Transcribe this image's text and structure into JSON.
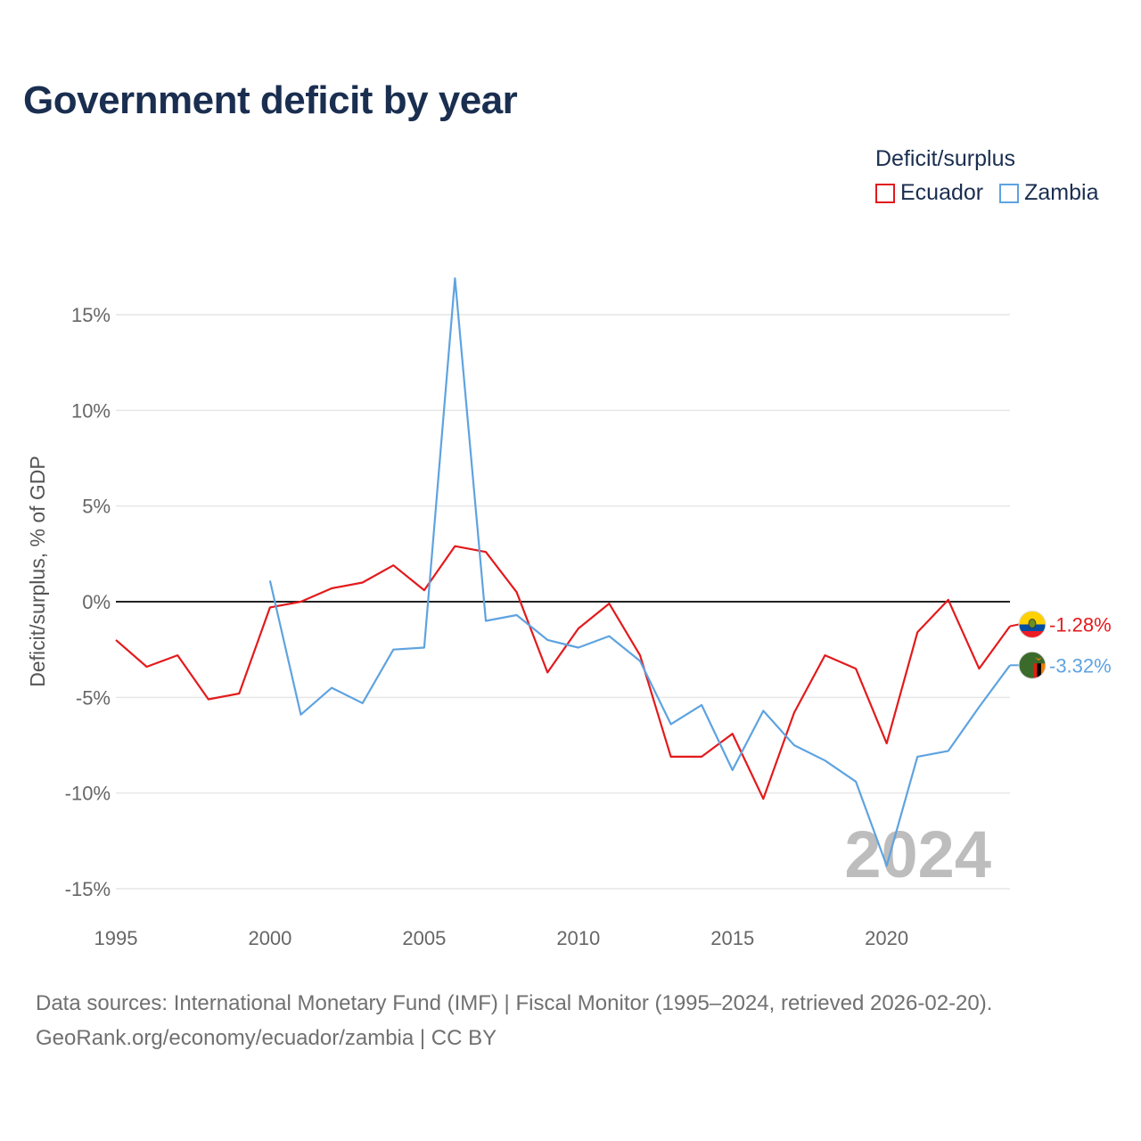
{
  "title": "Government deficit by year",
  "legend": {
    "title": "Deficit/surplus",
    "items": [
      {
        "label": "Ecuador",
        "color": "#e31a1c"
      },
      {
        "label": "Zambia",
        "color": "#5ea3e0"
      }
    ]
  },
  "chart_data": {
    "type": "line",
    "title": "Government deficit by year",
    "xlabel": "",
    "ylabel": "Deficit/surplus, % of GDP",
    "xlim": [
      1995,
      2024
    ],
    "ylim": [
      -15,
      17
    ],
    "x_ticks": [
      1995,
      2000,
      2005,
      2010,
      2015,
      2020
    ],
    "x_tick_labels": [
      "1995",
      "2000",
      "2005",
      "2010",
      "2015",
      "2020"
    ],
    "y_ticks": [
      15,
      10,
      5,
      0,
      -5,
      -10,
      -15
    ],
    "y_tick_labels": [
      "15%",
      "10%",
      "5%",
      "0%",
      "-5%",
      "-10%",
      "-15%"
    ],
    "grid": true,
    "watermark": "2024",
    "series": [
      {
        "name": "Ecuador",
        "color": "#e31a1c",
        "end_label": "-1.28%",
        "flag": "ecuador-flag",
        "x": [
          1995,
          1996,
          1997,
          1998,
          1999,
          2000,
          2001,
          2002,
          2003,
          2004,
          2005,
          2006,
          2007,
          2008,
          2009,
          2010,
          2011,
          2012,
          2013,
          2014,
          2015,
          2016,
          2017,
          2018,
          2019,
          2020,
          2021,
          2022,
          2023,
          2024
        ],
        "values": [
          -2.0,
          -3.4,
          -2.8,
          -5.1,
          -4.8,
          -0.3,
          0.0,
          0.7,
          1.0,
          1.9,
          0.6,
          2.9,
          2.6,
          0.5,
          -3.7,
          -1.4,
          -0.1,
          -2.8,
          -8.1,
          -8.1,
          -6.9,
          -10.3,
          -5.8,
          -2.8,
          -3.5,
          -7.4,
          -1.6,
          0.1,
          -3.5,
          -1.28
        ]
      },
      {
        "name": "Zambia",
        "color": "#5ea3e0",
        "end_label": "-3.32%",
        "flag": "zambia-flag",
        "x": [
          2000,
          2001,
          2002,
          2003,
          2004,
          2005,
          2006,
          2007,
          2008,
          2009,
          2010,
          2011,
          2012,
          2013,
          2014,
          2015,
          2016,
          2017,
          2018,
          2019,
          2020,
          2021,
          2022,
          2023,
          2024
        ],
        "values": [
          1.1,
          -5.9,
          -4.5,
          -5.3,
          -2.5,
          -2.4,
          16.9,
          -1.0,
          -0.7,
          -2.0,
          -2.4,
          -1.8,
          -3.1,
          -6.4,
          -5.4,
          -8.8,
          -5.7,
          -7.5,
          -8.3,
          -9.4,
          -13.8,
          -8.1,
          -7.8,
          -5.5,
          -3.32
        ]
      }
    ]
  },
  "footer": {
    "line1": "Data sources: International Monetary Fund (IMF) | Fiscal Monitor (1995–2024, retrieved 2026-02-20).",
    "line2": "GeoRank.org/economy/ecuador/zambia | CC BY"
  }
}
